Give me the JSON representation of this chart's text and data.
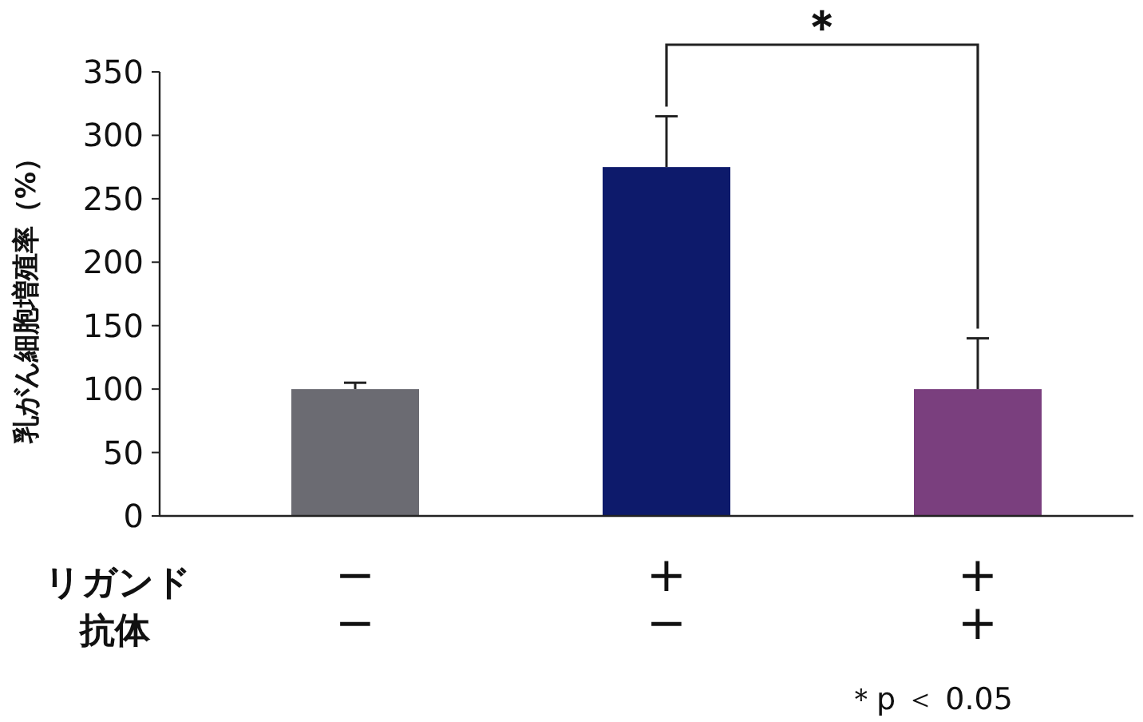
{
  "chart_data": {
    "type": "bar",
    "ylabel": "乳がん細胞増殖率（%）",
    "categories": [
      "−\n−",
      "+\n−",
      "+\n+"
    ],
    "values": [
      100,
      275,
      100
    ],
    "colors": [
      "#6b6b72",
      "#0d1a6b",
      "#7a3f7e"
    ],
    "errors": [
      [
        100,
        105
      ],
      [
        275,
        315
      ],
      [
        100,
        140
      ]
    ],
    "ylim": [
      0,
      350
    ],
    "yticks": [
      0,
      50,
      100,
      150,
      200,
      250,
      300,
      350
    ],
    "grid": false,
    "annotations": [
      "リガンド",
      "抗体",
      "＊",
      "＊p ＜ 0.05"
    ]
  }
}
